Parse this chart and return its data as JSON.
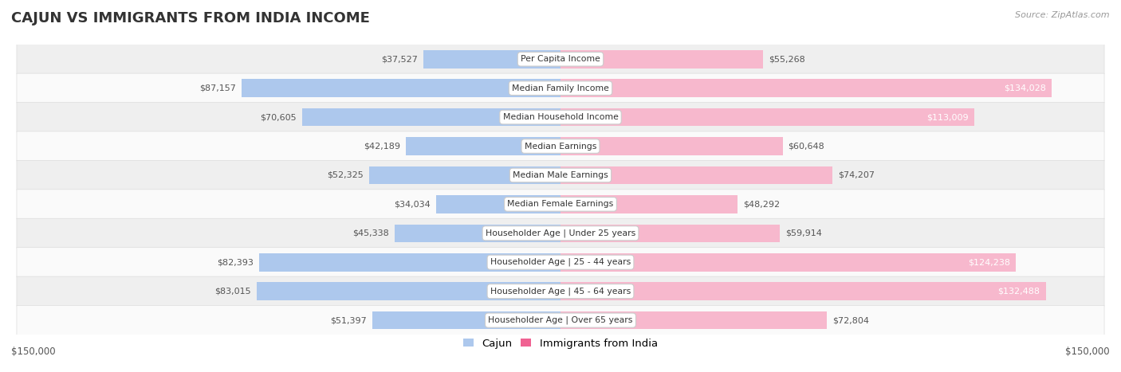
{
  "title": "CAJUN VS IMMIGRANTS FROM INDIA INCOME",
  "source": "Source: ZipAtlas.com",
  "categories": [
    "Per Capita Income",
    "Median Family Income",
    "Median Household Income",
    "Median Earnings",
    "Median Male Earnings",
    "Median Female Earnings",
    "Householder Age | Under 25 years",
    "Householder Age | 25 - 44 years",
    "Householder Age | 45 - 64 years",
    "Householder Age | Over 65 years"
  ],
  "cajun_values": [
    37527,
    87157,
    70605,
    42189,
    52325,
    34034,
    45338,
    82393,
    83015,
    51397
  ],
  "india_values": [
    55268,
    134028,
    113009,
    60648,
    74207,
    48292,
    59914,
    124238,
    132488,
    72804
  ],
  "cajun_labels": [
    "$37,527",
    "$87,157",
    "$70,605",
    "$42,189",
    "$52,325",
    "$34,034",
    "$45,338",
    "$82,393",
    "$83,015",
    "$51,397"
  ],
  "india_labels": [
    "$55,268",
    "$134,028",
    "$113,009",
    "$60,648",
    "$74,207",
    "$48,292",
    "$59,914",
    "$124,238",
    "$132,488",
    "$72,804"
  ],
  "cajun_color_light": "#adc8ed",
  "cajun_color_dark": "#6b9fd4",
  "india_color_light": "#f7b8cd",
  "india_color_dark": "#f06292",
  "label_inside_color": "#ffffff",
  "label_outside_color": "#555555",
  "max_value": 150000,
  "background_color": "#ffffff",
  "row_bg_even": "#efefef",
  "row_bg_odd": "#fafafa",
  "title_fontsize": 13,
  "legend_cajun": "Cajun",
  "legend_india": "Immigrants from India",
  "india_inside_threshold": 80000,
  "cajun_inside_threshold": 60000
}
